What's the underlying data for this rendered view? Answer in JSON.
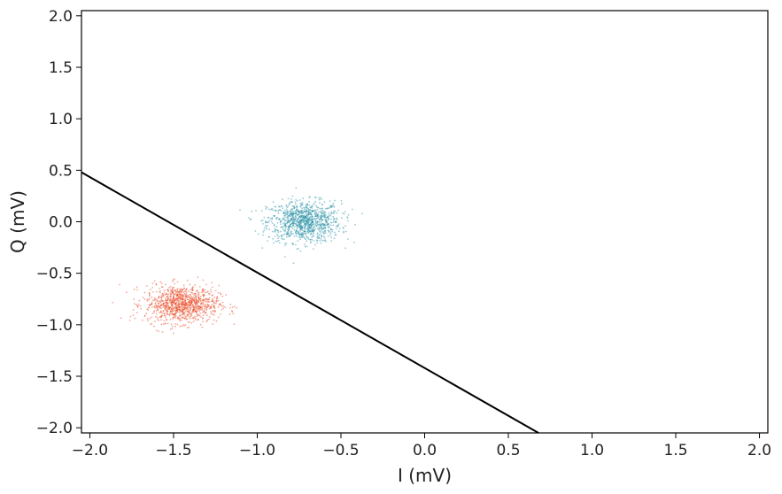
{
  "chart_data": {
    "type": "scatter",
    "title": "",
    "xlabel": "I (mV)",
    "ylabel": "Q (mV)",
    "xlim": [
      -2.05,
      2.05
    ],
    "ylim": [
      -2.05,
      2.05
    ],
    "grid": false,
    "x_ticks": [
      -2.0,
      -1.5,
      -1.0,
      -0.5,
      0.0,
      0.5,
      1.0,
      1.5,
      2.0
    ],
    "y_ticks": [
      -2.0,
      -1.5,
      -1.0,
      -0.5,
      0.0,
      0.5,
      1.0,
      1.5,
      2.0
    ],
    "x_tick_labels": [
      "−2.0",
      "−1.5",
      "−1.0",
      "−0.5",
      "0.0",
      "0.5",
      "1.0",
      "1.5",
      "2.0"
    ],
    "y_tick_labels": [
      "−2.0",
      "−1.5",
      "−1.0",
      "−0.5",
      "0.0",
      "0.5",
      "1.0",
      "1.5",
      "2.0"
    ],
    "series": [
      {
        "color": "#1a8aa0",
        "center": [
          -0.72,
          0.0
        ],
        "spread": [
          0.11,
          0.1
        ],
        "point_count": 1000
      },
      {
        "color": "#e8431c",
        "center": [
          -1.45,
          -0.8
        ],
        "spread": [
          0.11,
          0.09
        ],
        "point_count": 1000
      }
    ],
    "threshold_line": {
      "color": "#000000",
      "points": [
        [
          -2.05,
          0.48
        ],
        [
          0.68,
          -2.05
        ]
      ]
    }
  }
}
